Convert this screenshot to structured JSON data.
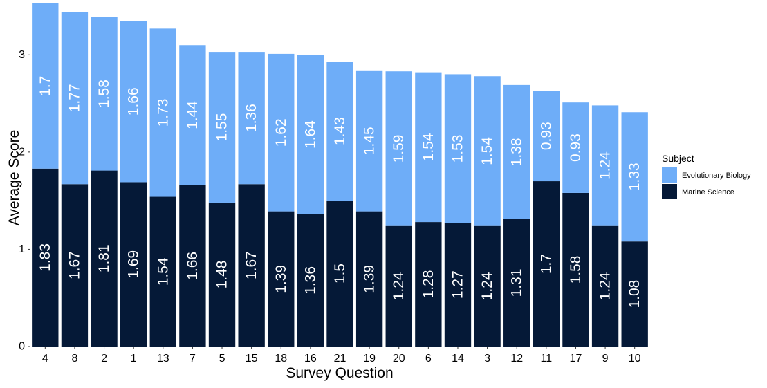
{
  "chart_data": {
    "type": "bar",
    "stacked": true,
    "title": "",
    "xlabel": "Survey Question",
    "ylabel": "Average Score",
    "ylim": [
      0,
      3.55
    ],
    "yticks": [
      0,
      1,
      2,
      3
    ],
    "grid": false,
    "categories": [
      "4",
      "8",
      "2",
      "1",
      "13",
      "7",
      "5",
      "15",
      "18",
      "16",
      "21",
      "19",
      "20",
      "6",
      "14",
      "3",
      "12",
      "11",
      "17",
      "9",
      "10"
    ],
    "series": [
      {
        "name": "Marine Science",
        "color": "#051937",
        "values": [
          1.83,
          1.67,
          1.81,
          1.69,
          1.54,
          1.66,
          1.48,
          1.67,
          1.39,
          1.36,
          1.5,
          1.39,
          1.24,
          1.28,
          1.27,
          1.24,
          1.31,
          1.7,
          1.58,
          1.24,
          1.08
        ],
        "labels": [
          "1.83",
          "1.67",
          "1.81",
          "1.69",
          "1.54",
          "1.66",
          "1.48",
          "1.67",
          "1.39",
          "1.36",
          "1.5",
          "1.39",
          "1.24",
          "1.28",
          "1.27",
          "1.24",
          "1.31",
          "1.7",
          "1.58",
          "1.24",
          "1.08"
        ]
      },
      {
        "name": "Evolutionary Biology",
        "color": "#6EADF8",
        "values": [
          1.7,
          1.77,
          1.58,
          1.66,
          1.73,
          1.44,
          1.55,
          1.36,
          1.62,
          1.64,
          1.43,
          1.45,
          1.59,
          1.54,
          1.53,
          1.54,
          1.38,
          0.93,
          0.93,
          1.24,
          1.33
        ],
        "labels": [
          "1.7",
          "1.77",
          "1.58",
          "1.66",
          "1.73",
          "1.44",
          "1.55",
          "1.36",
          "1.62",
          "1.64",
          "1.43",
          "1.45",
          "1.59",
          "1.54",
          "1.53",
          "1.54",
          "1.38",
          "0.93",
          "0.93",
          "1.24",
          "1.33"
        ]
      }
    ],
    "legend": {
      "title": "Subject",
      "placement": "right",
      "entries": [
        "Evolutionary Biology",
        "Marine Science"
      ]
    }
  }
}
